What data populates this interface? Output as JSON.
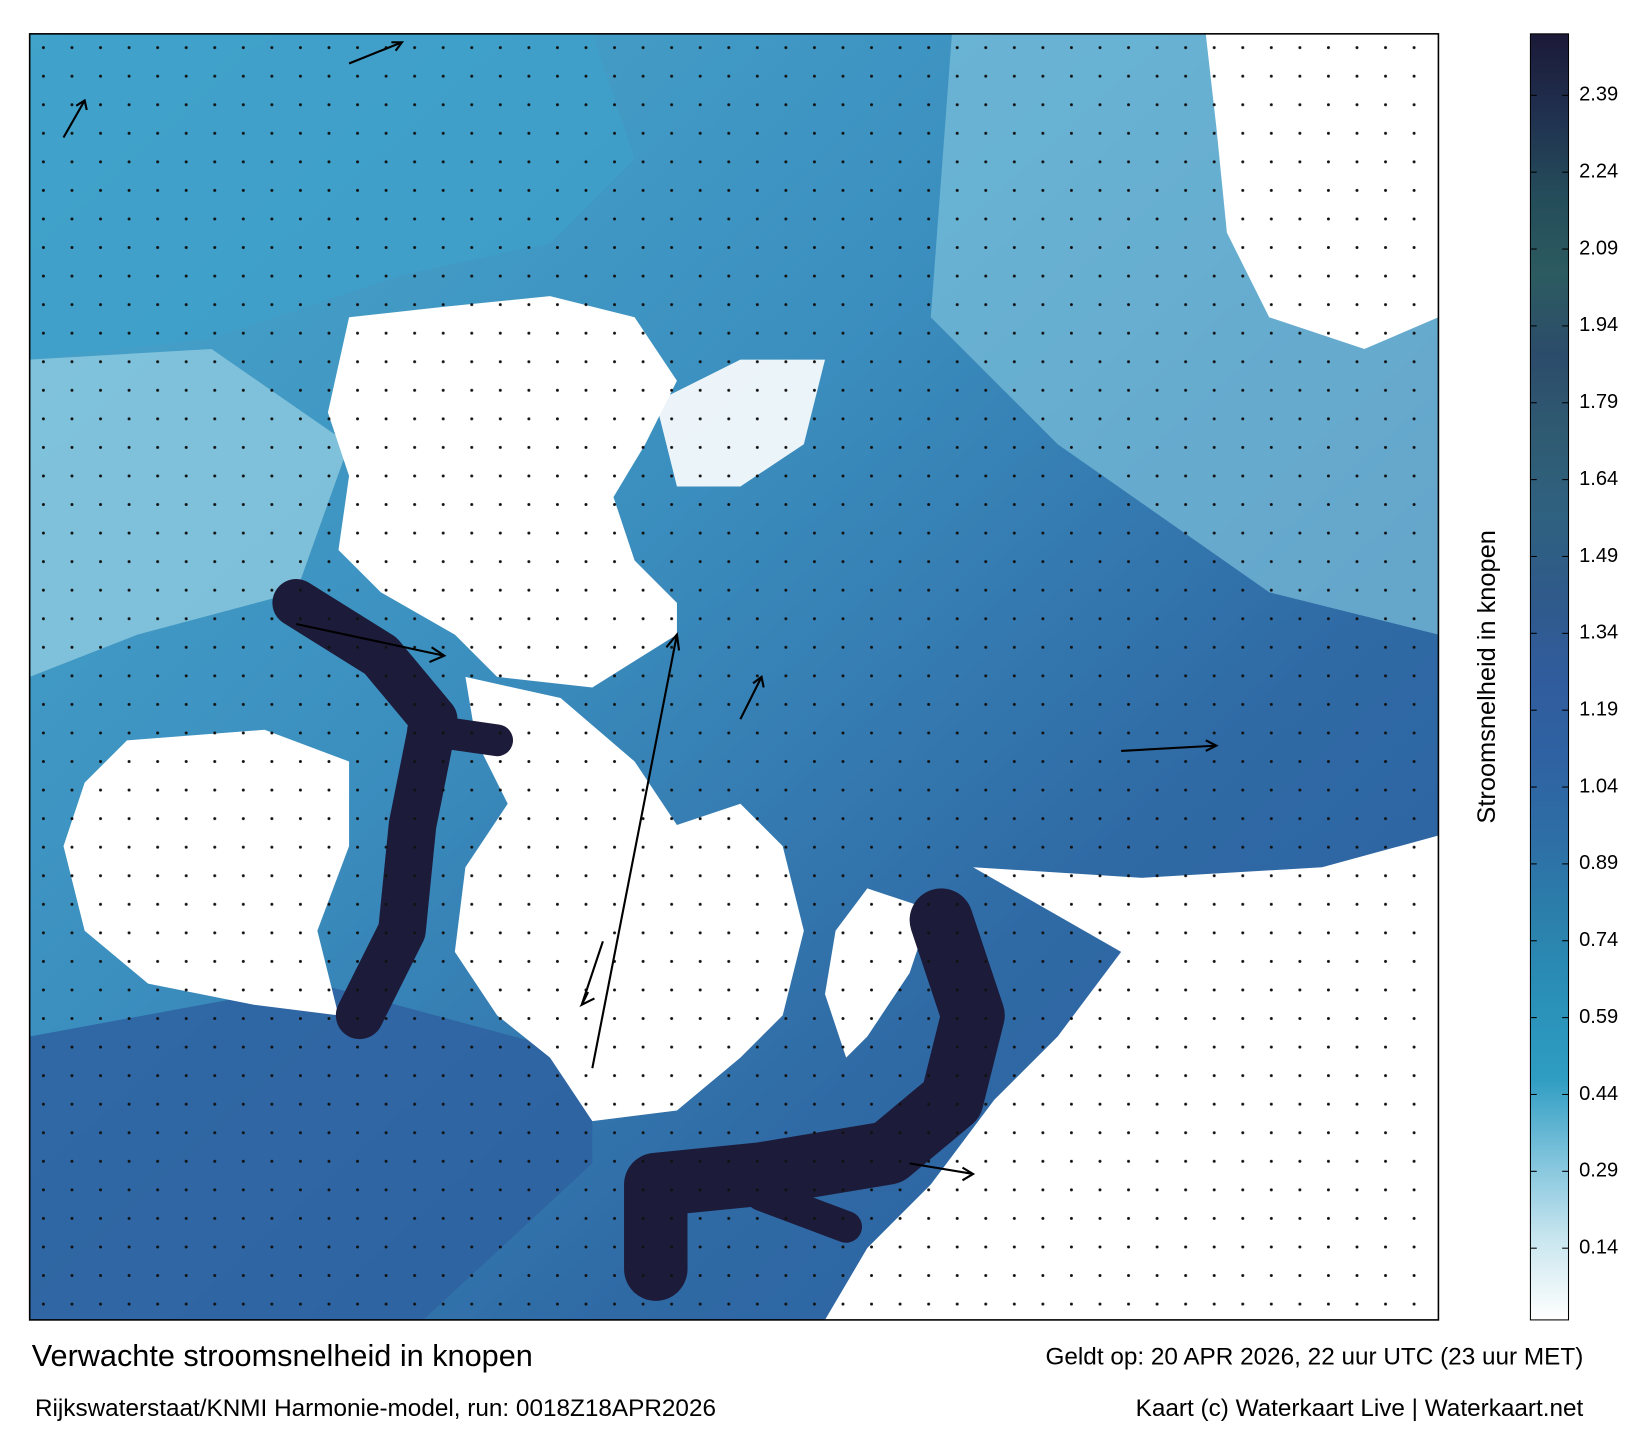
{
  "map": {
    "title": "Verwachte stroomsnelheid in knopen",
    "valid_time": "Geldt op: 20 APR 2026, 22 uur UTC (23 uur MET)",
    "model_run": "Rijkswaterstaat/KNMI Harmonie-model, run: 0018Z18APR2026",
    "credit": "Kaart (c) Waterkaart Live | Waterkaart.net",
    "colorbar": {
      "label": "Stroomsnelheid in knopen",
      "lim": [
        0,
        2.51
      ],
      "ticks": [
        0.14,
        0.29,
        0.44,
        0.59,
        0.74,
        0.89,
        1.04,
        1.19,
        1.34,
        1.49,
        1.64,
        1.79,
        1.94,
        2.09,
        2.24,
        2.39
      ],
      "colors": [
        "#ffffff",
        "#c9e6ef",
        "#7fc3dc",
        "#2f9dc2",
        "#2a90b8",
        "#2b80ab",
        "#2e6ea6",
        "#2f62a2",
        "#305c9d",
        "#2f5a8a",
        "#2f6180",
        "#2f5b72",
        "#2c4c6b",
        "#2c5b60",
        "#244c5a",
        "#20304f",
        "#1b1a38"
      ]
    }
  }
}
